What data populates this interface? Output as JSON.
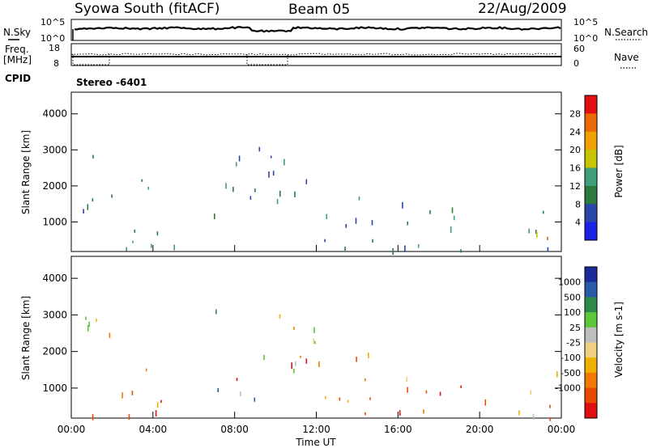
{
  "header": {
    "station": "Syowa South (fitACF)",
    "beam": "Beam 05",
    "date": "22/Aug/2009"
  },
  "side_labels": {
    "nsky": "N.Sky",
    "freq_line1": "Freq.",
    "freq_line2": "[MHz]",
    "cpid": "CPID",
    "nsearch": "N.Search",
    "nave": "Nave"
  },
  "noise_axis": {
    "left_ticks": [
      "10^5",
      "10^0"
    ],
    "right_ticks": [
      "10^5",
      "10^0"
    ]
  },
  "freq_axis": {
    "left_ticks": [
      "18",
      "8"
    ],
    "right_ticks": [
      "60",
      "0"
    ]
  },
  "cpid_text": "Stereo -6401",
  "colors": {
    "power": [
      "#1a22e6",
      "#2a45a8",
      "#2c7a3e",
      "#3ea07a",
      "#c8c400",
      "#f0a000",
      "#e86a00",
      "#e01010"
    ],
    "velocity": [
      "#e01010",
      "#e84a00",
      "#f07a00",
      "#f0b000",
      "#f0d080",
      "#bebebe",
      "#5ac83a",
      "#2e8a4a",
      "#2a5aa8",
      "#1a2a9a"
    ]
  },
  "chart_data": [
    {
      "type": "heatmap",
      "name": "power",
      "xlabel": "",
      "ylabel": "Slant Range [km]",
      "ylim": [
        180,
        4600
      ],
      "xlim": [
        0,
        24
      ],
      "yticks": [
        "4000",
        "3000",
        "2000",
        "1000"
      ],
      "colorbar": {
        "label": "Power [dB]",
        "ticks": [
          "28",
          "24",
          "20",
          "16",
          "12",
          "8",
          "4"
        ],
        "range": [
          0,
          32
        ]
      },
      "clusters": [
        {
          "t": [
            0.0,
            24.0
          ],
          "r": [
            200,
            420
          ],
          "v": [
            4,
            16
          ]
        },
        {
          "t": [
            0.3,
            2.0
          ],
          "r": [
            500,
            3200
          ],
          "v": [
            4,
            10
          ]
        },
        {
          "t": [
            2.3,
            5.0
          ],
          "r": [
            200,
            2300
          ],
          "v": [
            4,
            20
          ]
        },
        {
          "t": [
            3.8,
            4.5
          ],
          "r": [
            250,
            700
          ],
          "v": [
            12,
            28
          ]
        },
        {
          "t": [
            6.5,
            12.0
          ],
          "r": [
            600,
            3200
          ],
          "v": [
            4,
            16
          ]
        },
        {
          "t": [
            12.0,
            16.0
          ],
          "r": [
            300,
            2000
          ],
          "v": [
            4,
            14
          ]
        },
        {
          "t": [
            16.0,
            18.0
          ],
          "r": [
            400,
            1700
          ],
          "v": [
            4,
            12
          ]
        },
        {
          "t": [
            18.0,
            20.5
          ],
          "r": [
            600,
            1700
          ],
          "v": [
            4,
            20
          ]
        },
        {
          "t": [
            21.0,
            24.0
          ],
          "r": [
            250,
            1800
          ],
          "v": [
            4,
            20
          ]
        },
        {
          "t": [
            22.5,
            23.8
          ],
          "r": [
            250,
            1100
          ],
          "v": [
            12,
            28
          ]
        }
      ]
    },
    {
      "type": "heatmap",
      "name": "velocity",
      "xlabel": "Time UT",
      "ylabel": "Slant Range [km]",
      "ylim": [
        180,
        4600
      ],
      "xlim": [
        0,
        24
      ],
      "yticks": [
        "4000",
        "3000",
        "2000",
        "1000"
      ],
      "xticks": [
        "00:00",
        "04:00",
        "08:00",
        "12:00",
        "16:00",
        "20:00",
        "00:00"
      ],
      "colorbar": {
        "label": "Velocity [m s-1]",
        "ticks": [
          "1000",
          "500",
          "100",
          "25",
          "-25",
          "-100",
          "-500",
          "-1000"
        ]
      },
      "clusters": [
        {
          "t": [
            0.0,
            24.0
          ],
          "r": [
            200,
            420
          ],
          "v": [
            0,
            2
          ]
        },
        {
          "t": [
            0.3,
            2.0
          ],
          "r": [
            500,
            3200
          ],
          "v": [
            2,
            7
          ]
        },
        {
          "t": [
            2.3,
            5.0
          ],
          "r": [
            200,
            2300
          ],
          "v": [
            0,
            3
          ]
        },
        {
          "t": [
            6.5,
            12.0
          ],
          "r": [
            600,
            3200
          ],
          "v": [
            0,
            8
          ]
        },
        {
          "t": [
            12.0,
            16.0
          ],
          "r": [
            300,
            2000
          ],
          "v": [
            1,
            3
          ]
        },
        {
          "t": [
            16.0,
            18.0
          ],
          "r": [
            400,
            1700
          ],
          "v": [
            1,
            4
          ]
        },
        {
          "t": [
            18.0,
            20.5
          ],
          "r": [
            600,
            1700
          ],
          "v": [
            0,
            2
          ]
        },
        {
          "t": [
            21.0,
            24.0
          ],
          "r": [
            250,
            1800
          ],
          "v": [
            1,
            8
          ]
        }
      ]
    }
  ]
}
